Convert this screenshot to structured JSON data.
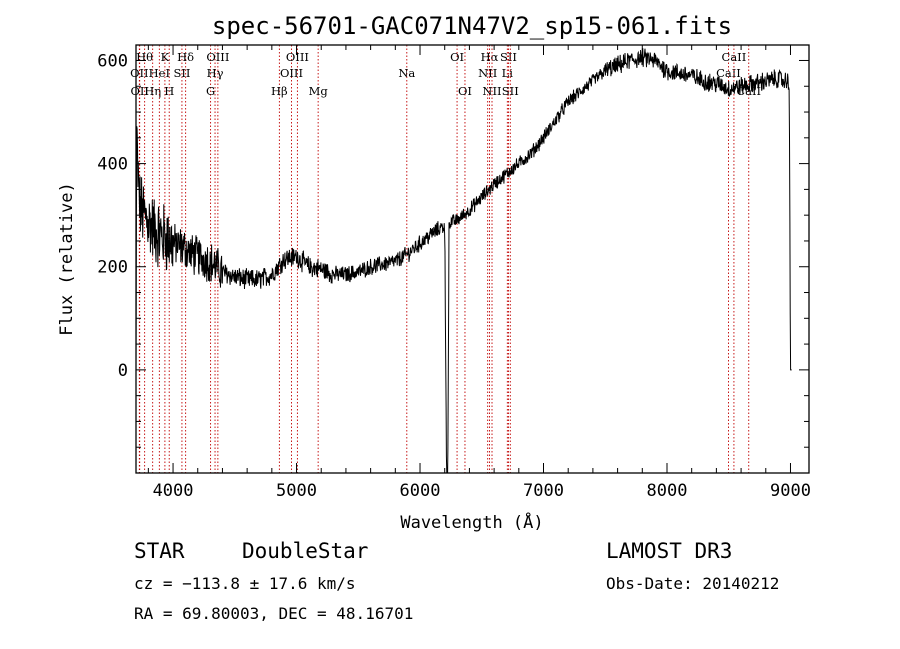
{
  "chart_data": {
    "type": "line",
    "title": "spec-56701-GAC071N47V2_sp15-061.fits",
    "xlabel": "Wavelength (Å)",
    "ylabel": "Flux (relative)",
    "xlim": [
      3700,
      9150
    ],
    "ylim": [
      -200,
      630
    ],
    "xticks": [
      4000,
      5000,
      6000,
      7000,
      8000,
      9000
    ],
    "xtick_labels": [
      "4000",
      "5000",
      "6000",
      "7000",
      "8000",
      "9000"
    ],
    "yticks": [
      0,
      200,
      400,
      600
    ],
    "ytick_labels": [
      "0",
      "200",
      "400",
      "600"
    ],
    "grid": false,
    "series": [
      {
        "name": "flux",
        "x": [
          3700,
          3705,
          3715,
          3730,
          3760,
          3800,
          3850,
          3900,
          3950,
          4000,
          4050,
          4100,
          4150,
          4200,
          4300,
          4400,
          4500,
          4600,
          4700,
          4800,
          4900,
          5000,
          5100,
          5200,
          5300,
          5400,
          5500,
          5600,
          5700,
          5800,
          5900,
          6000,
          6100,
          6200,
          6215,
          6225,
          6235,
          6300,
          6400,
          6500,
          6600,
          6700,
          6800,
          6900,
          7000,
          7100,
          7200,
          7300,
          7400,
          7500,
          7600,
          7700,
          7800,
          7900,
          8000,
          8100,
          8200,
          8300,
          8400,
          8500,
          8600,
          8700,
          8800,
          8900,
          8950,
          8990,
          9000,
          9010
        ],
        "y": [
          0,
          470,
          380,
          320,
          300,
          290,
          270,
          260,
          255,
          245,
          240,
          235,
          225,
          220,
          210,
          190,
          180,
          175,
          175,
          185,
          215,
          220,
          200,
          195,
          185,
          185,
          190,
          200,
          205,
          210,
          225,
          245,
          265,
          280,
          -200,
          -200,
          285,
          290,
          310,
          335,
          360,
          380,
          400,
          420,
          450,
          485,
          520,
          540,
          560,
          580,
          590,
          600,
          605,
          600,
          580,
          575,
          570,
          560,
          555,
          545,
          550,
          555,
          560,
          565,
          560,
          560,
          0,
          0
        ]
      }
    ],
    "spectral_lines": [
      {
        "x": 3727,
        "label": "OII",
        "row": 2
      },
      {
        "x": 3730,
        "label": "OII",
        "row": 3
      },
      {
        "x": 3770,
        "label": "Hθ",
        "row": 1
      },
      {
        "x": 3835,
        "label": "Hη",
        "row": 3
      },
      {
        "x": 3889,
        "label": "HeI",
        "row": 2
      },
      {
        "x": 3934,
        "label": "K",
        "row": 1
      },
      {
        "x": 3969,
        "label": "H",
        "row": 3
      },
      {
        "x": 4072,
        "label": "SII",
        "row": 2
      },
      {
        "x": 4102,
        "label": "Hδ",
        "row": 1
      },
      {
        "x": 4304,
        "label": "G",
        "row": 3
      },
      {
        "x": 4340,
        "label": "Hγ",
        "row": 2
      },
      {
        "x": 4363,
        "label": "OIII",
        "row": 1
      },
      {
        "x": 4861,
        "label": "Hβ",
        "row": 3
      },
      {
        "x": 4959,
        "label": "OIII",
        "row": 2
      },
      {
        "x": 5007,
        "label": "OIII",
        "row": 1
      },
      {
        "x": 5175,
        "label": "Mg",
        "row": 3
      },
      {
        "x": 5893,
        "label": "Na",
        "row": 2
      },
      {
        "x": 6300,
        "label": "OI",
        "row": 1
      },
      {
        "x": 6364,
        "label": "OI",
        "row": 3
      },
      {
        "x": 6548,
        "label": "NII",
        "row": 2
      },
      {
        "x": 6563,
        "label": "Hα",
        "row": 1
      },
      {
        "x": 6583,
        "label": "NII",
        "row": 3
      },
      {
        "x": 6707,
        "label": "Li",
        "row": 2
      },
      {
        "x": 6716,
        "label": "SII",
        "row": 1
      },
      {
        "x": 6731,
        "label": "SII",
        "row": 3
      },
      {
        "x": 8498,
        "label": "CaII",
        "row": 2
      },
      {
        "x": 8542,
        "label": "CaII",
        "row": 1
      },
      {
        "x": 8662,
        "label": "CaII",
        "row": 3
      }
    ]
  },
  "info": {
    "object_class": "STAR",
    "subclass": "DoubleStar",
    "survey": "LAMOST DR3",
    "cz": "cz = −113.8 ± 17.6 km/s",
    "obs_date": "Obs-Date: 20140212",
    "coords": "RA =  69.80003, DEC =  48.16701"
  },
  "colors": {
    "spectrum": "#000000",
    "line_marker": "#c00000",
    "frame": "#000000"
  }
}
